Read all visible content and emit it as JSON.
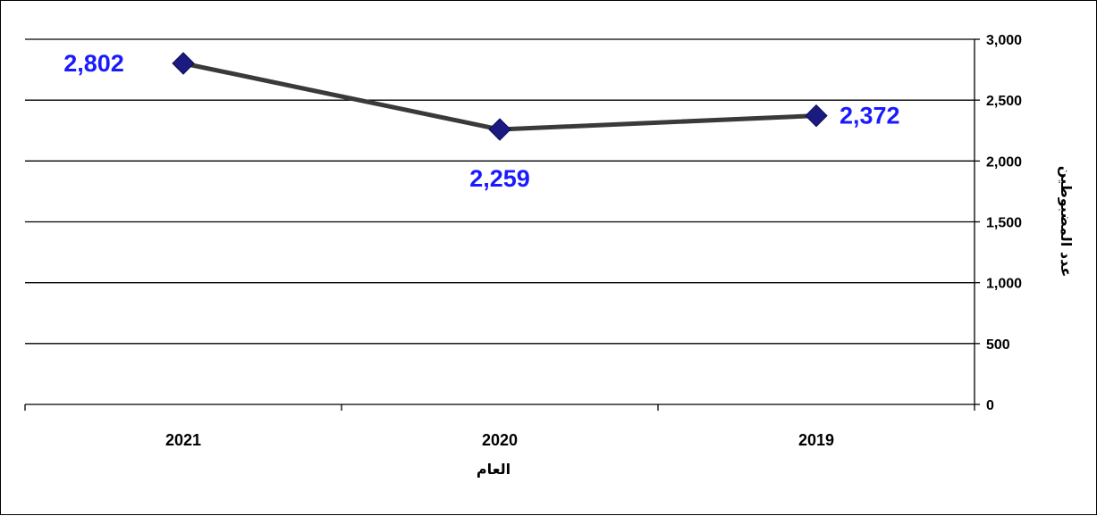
{
  "chart_data": {
    "type": "line",
    "categories": [
      "2021",
      "2020",
      "2019"
    ],
    "series": [
      {
        "values": [
          2802,
          2259,
          2372
        ]
      }
    ],
    "data_labels": [
      "2,802",
      "2,259",
      "2,372"
    ],
    "xlabel": "العام",
    "ylabel": "عدد المضبوطين",
    "ylim": [
      0,
      3000
    ],
    "y_ticks": [
      0,
      500,
      1000,
      1500,
      2000,
      2500,
      3000
    ],
    "y_tick_labels": [
      "0",
      "500",
      "1,000",
      "1,500",
      "2,000",
      "2,500",
      "3,000"
    ],
    "y_axis_side": "right",
    "grid": true,
    "legend": false
  },
  "colors": {
    "line": "#3a3a3a",
    "marker": "#1a1a80",
    "data_label": "#1a1aff",
    "grid": "#000000"
  }
}
